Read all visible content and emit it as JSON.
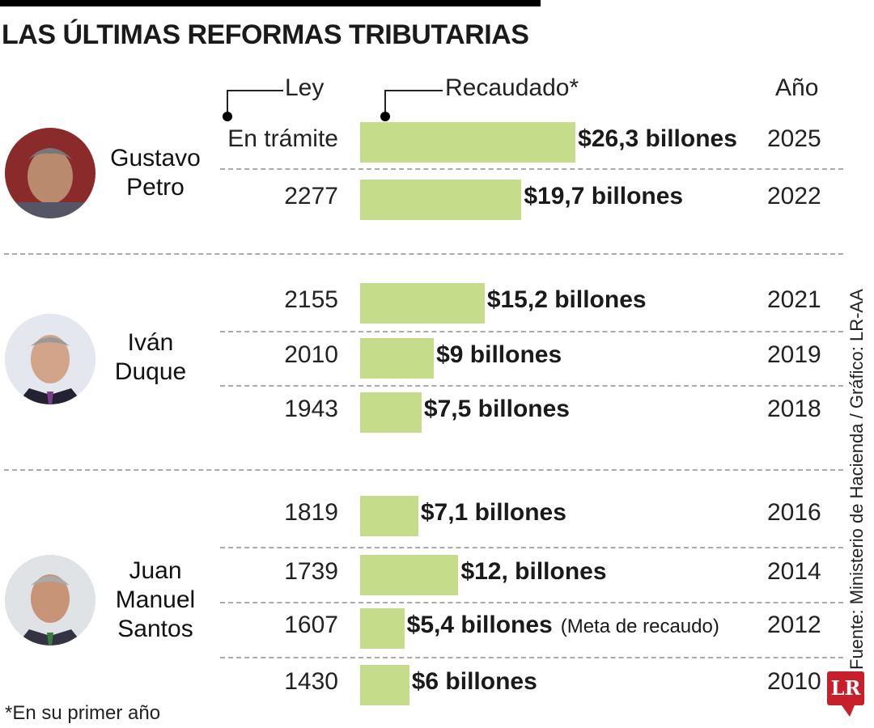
{
  "title": "LAS ÚLTIMAS REFORMAS TRIBUTARIAS",
  "headers": {
    "ley": "Ley",
    "recaudado": "Recaudado*",
    "anio": "Año"
  },
  "colors": {
    "bar": "#c5dc8a",
    "logo": "#c8202a"
  },
  "chart_data": {
    "type": "bar",
    "orientation": "horizontal",
    "unit": "billones",
    "rows": [
      {
        "president": "Gustavo Petro",
        "ley": "En trámite",
        "value": 26.3,
        "label": "$26,3 billones",
        "year": "2025"
      },
      {
        "president": "Gustavo Petro",
        "ley": "2277",
        "value": 19.7,
        "label": "$19,7 billones",
        "year": "2022"
      },
      {
        "president": "Iván Duque",
        "ley": "2155",
        "value": 15.2,
        "label": "$15,2 billones",
        "year": "2021"
      },
      {
        "president": "Iván Duque",
        "ley": "2010",
        "value": 9,
        "label": "$9 billones",
        "year": "2019"
      },
      {
        "president": "Iván Duque",
        "ley": "1943",
        "value": 7.5,
        "label": "$7,5 billones",
        "year": "2018"
      },
      {
        "president": "Juan Manuel Santos",
        "ley": "1819",
        "value": 7.1,
        "label": "$7,1 billones",
        "year": "2016"
      },
      {
        "president": "Juan Manuel Santos",
        "ley": "1739",
        "value": 12,
        "label": "$12, billones",
        "year": "2014"
      },
      {
        "president": "Juan Manuel Santos",
        "ley": "1607",
        "value": 5.4,
        "label": "$5,4 billones",
        "note": "(Meta de recaudo)",
        "year": "2012"
      },
      {
        "president": "Juan Manuel Santos",
        "ley": "1430",
        "value": 6,
        "label": "$6 billones",
        "year": "2010"
      }
    ]
  },
  "presidents": [
    {
      "lines": [
        "Gustavo",
        "Petro"
      ]
    },
    {
      "lines": [
        "Iván",
        "Duque"
      ]
    },
    {
      "lines": [
        "Juan",
        "Manuel",
        "Santos"
      ]
    }
  ],
  "footnote": "*En su primer año",
  "source": "Fuente: Ministerio de Hacienda / Gráfico: LR-AA",
  "logo": "LR"
}
